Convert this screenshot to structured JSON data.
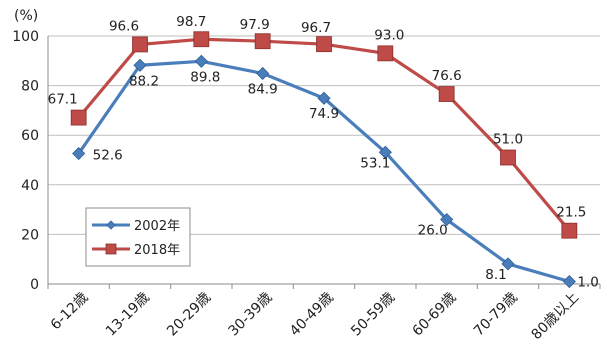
{
  "chart_data": {
    "type": "line",
    "categories": [
      "6-12歳",
      "13-19歳",
      "20-29歳",
      "30-39歳",
      "40-49歳",
      "50-59歳",
      "60-69歳",
      "70-79歳",
      "80歳以上"
    ],
    "series": [
      {
        "name": "2002年",
        "values": [
          52.6,
          88.2,
          89.8,
          84.9,
          74.9,
          53.1,
          26.0,
          8.1,
          1.0
        ],
        "value_labels": [
          "52.6",
          "88.2",
          "89.8",
          "84.9",
          "74.9",
          "53.1",
          "26.0",
          "8.1",
          "1.0"
        ],
        "color": "#4a7ebb",
        "marker": "diamond"
      },
      {
        "name": "2018年",
        "values": [
          67.1,
          96.6,
          98.7,
          97.9,
          96.7,
          93.0,
          76.6,
          51.0,
          21.5
        ],
        "value_labels": [
          "67.1",
          "96.6",
          "98.7",
          "97.9",
          "96.7",
          "93.0",
          "76.6",
          "51.0",
          "21.5"
        ],
        "color": "#be4b48",
        "marker": "square"
      }
    ],
    "y_unit": "(%)",
    "ylim": [
      0,
      100
    ],
    "yticks": [
      0,
      20,
      40,
      60,
      80,
      100
    ],
    "grid": "horizontal",
    "legend_position": "inside-left"
  }
}
